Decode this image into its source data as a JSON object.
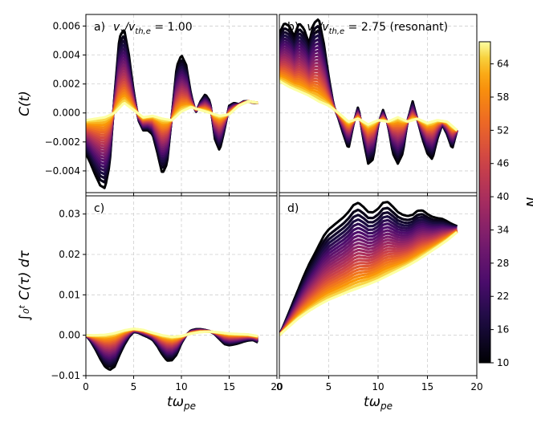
{
  "chart_data": {
    "type": "line",
    "colormap": "inferno",
    "colorbar": {
      "label": "N",
      "min": 10,
      "max": 68,
      "ticks": [
        "10",
        "16",
        "22",
        "28",
        "34",
        "40",
        "46",
        "52",
        "58",
        "64"
      ]
    },
    "x_axis": {
      "label": "tω_pe",
      "lim": [
        0,
        20
      ],
      "ticks": [
        "0",
        "5",
        "10",
        "15",
        "20"
      ]
    },
    "panels": [
      {
        "id": "a",
        "title": "a)  v_x/v_th,e = 1.00",
        "tag": "a)",
        "eq": "v_x/v_th,e = 1.00",
        "ylabel": "C(t)",
        "ylim": [
          -0.0055,
          0.0068
        ],
        "yticks": [
          "0.006",
          "0.004",
          "0.002",
          "0.000",
          "−0.002",
          "−0.004"
        ],
        "x_end": 18.0,
        "series_low_N": {
          "N": 10,
          "x": [
            0,
            0.5,
            1,
            1.5,
            2,
            2.5,
            3,
            3.5,
            4,
            4.5,
            5,
            5.5,
            6,
            6.5,
            7,
            7.5,
            8,
            8.5,
            9,
            9.5,
            10,
            10.5,
            11,
            11.5,
            12,
            12.5,
            13,
            13.5,
            14,
            14.5,
            15,
            15.5,
            16,
            16.5,
            17,
            17.5,
            18
          ],
          "y": [
            -0.0028,
            -0.0035,
            -0.0043,
            -0.005,
            -0.0052,
            -0.0035,
            0.0012,
            0.0052,
            0.0058,
            0.004,
            0.0015,
            -0.0005,
            -0.0012,
            -0.0012,
            -0.0015,
            -0.0028,
            -0.0042,
            -0.0035,
            -0.0002,
            0.0032,
            0.004,
            0.0033,
            0.0013,
            0,
            0.0008,
            0.0013,
            0.0008,
            -0.0018,
            -0.0026,
            -0.0012,
            0.0005,
            0.0007,
            0.0006,
            0.0008,
            0.0008,
            0.0007,
            0.0007
          ]
        },
        "series_high_N": {
          "N": 68,
          "x": [
            0,
            1,
            2,
            3,
            4,
            5,
            6,
            7,
            8,
            9,
            10,
            11,
            12,
            13,
            14,
            15,
            16,
            17,
            18
          ],
          "y": [
            -0.0005,
            -0.0004,
            -0.0003,
            0.0,
            0.0007,
            0.0002,
            -0.0003,
            -0.0002,
            -0.0004,
            -0.0005,
            0.0001,
            0.0004,
            0.0002,
            0.0,
            -0.0002,
            -0.0001,
            0.0005,
            0.0008,
            0.0007
          ]
        }
      },
      {
        "id": "b",
        "title": "b)  v_x/v_th,e = 2.75 (resonant)",
        "tag": "b)",
        "eq": "v_x/v_th,e = 2.75 (resonant)",
        "ylabel": "",
        "ylim": [
          -0.0055,
          0.0068
        ],
        "yticks": [],
        "x_end": 18.0,
        "series_low_N": {
          "N": 10,
          "x": [
            0,
            0.5,
            1,
            1.5,
            2,
            2.5,
            3,
            3.5,
            4,
            4.5,
            5,
            5.5,
            6,
            6.5,
            7,
            7.5,
            8,
            8.5,
            9,
            9.5,
            10,
            10.5,
            11,
            11.5,
            12,
            12.5,
            13,
            13.5,
            14,
            14.5,
            15,
            15.5,
            16,
            16.5,
            17,
            17.5,
            18
          ],
          "y": [
            0.0055,
            0.0062,
            0.006,
            0.0053,
            0.0062,
            0.0058,
            0.0048,
            0.0062,
            0.0065,
            0.0048,
            0.0025,
            0.0005,
            -0.0004,
            -0.0015,
            -0.0025,
            -0.0008,
            0.0005,
            -0.0018,
            -0.0035,
            -0.0032,
            -0.0008,
            0.0002,
            -0.0008,
            -0.0028,
            -0.0035,
            -0.0028,
            -0.0005,
            0.0008,
            -0.0005,
            -0.0018,
            -0.0028,
            -0.0032,
            -0.0018,
            -0.0008,
            -0.0015,
            -0.0025,
            -0.0012
          ]
        },
        "series_high_N": {
          "N": 68,
          "x": [
            0,
            1,
            2,
            3,
            4,
            5,
            6,
            7,
            8,
            9,
            10,
            11,
            12,
            13,
            14,
            15,
            16,
            17,
            18
          ],
          "y": [
            0.0022,
            0.0018,
            0.0015,
            0.0012,
            0.0008,
            0.0005,
            0.0,
            -0.0006,
            -0.0004,
            -0.0008,
            -0.0005,
            -0.0006,
            -0.0003,
            -0.0006,
            -0.0004,
            -0.0007,
            -0.0005,
            -0.0006,
            -0.0012
          ]
        }
      },
      {
        "id": "c",
        "title": "c)",
        "tag": "c)",
        "eq": "",
        "ylabel": "∫₀ᵗ C(τ) dτ",
        "ylim": [
          -0.01,
          0.0345
        ],
        "yticks": [
          "0.03",
          "0.02",
          "0.01",
          "0.00",
          "−0.01"
        ],
        "x_end": 18.0,
        "series_low_N": {
          "N": 10,
          "x": [
            0,
            0.5,
            1,
            1.5,
            2,
            2.5,
            3,
            3.5,
            4,
            4.5,
            5,
            5.5,
            6,
            6.5,
            7,
            7.5,
            8,
            8.5,
            9,
            9.5,
            10,
            10.5,
            11,
            11.5,
            12,
            12.5,
            13,
            13.5,
            14,
            14.5,
            15,
            15.5,
            16,
            16.5,
            17,
            17.5,
            18
          ],
          "y": [
            0,
            -0.0015,
            -0.0035,
            -0.0058,
            -0.0078,
            -0.0086,
            -0.0078,
            -0.005,
            -0.0025,
            -0.0005,
            0.0008,
            0.0006,
            0,
            -0.0005,
            -0.0012,
            -0.0028,
            -0.0048,
            -0.0063,
            -0.0062,
            -0.0048,
            -0.002,
            0.0,
            0.0012,
            0.0015,
            0.0015,
            0.0013,
            0.001,
            0.0002,
            -0.001,
            -0.0022,
            -0.0025,
            -0.0023,
            -0.002,
            -0.0016,
            -0.0013,
            -0.0012,
            -0.0018
          ]
        },
        "series_high_N": {
          "N": 68,
          "x": [
            0,
            1,
            2,
            3,
            4,
            5,
            6,
            7,
            8,
            9,
            10,
            11,
            12,
            13,
            14,
            15,
            16,
            17,
            18
          ],
          "y": [
            0,
            0,
            0.0001,
            0.0005,
            0.0012,
            0.0016,
            0.0013,
            0.0006,
            0,
            -0.0004,
            -0.0002,
            0.0004,
            0.0008,
            0.0009,
            0.0007,
            0.0004,
            0.0003,
            0.0002,
            -0.0002
          ]
        }
      },
      {
        "id": "d",
        "title": "d)",
        "tag": "d)",
        "eq": "",
        "ylabel": "",
        "ylim": [
          -0.01,
          0.0345
        ],
        "yticks": [],
        "x_end": 18.0,
        "series_low_N": {
          "N": 10,
          "x": [
            0,
            0.5,
            1,
            1.5,
            2,
            2.5,
            3,
            3.5,
            4,
            4.5,
            5,
            5.5,
            6,
            6.5,
            7,
            7.5,
            8,
            8.5,
            9,
            9.5,
            10,
            10.5,
            11,
            11.5,
            12,
            12.5,
            13,
            13.5,
            14,
            14.5,
            15,
            15.5,
            16,
            16.5,
            17,
            17.5,
            18
          ],
          "y": [
            0,
            0.0028,
            0.0058,
            0.0088,
            0.0118,
            0.0148,
            0.0175,
            0.0198,
            0.0222,
            0.0246,
            0.0262,
            0.0272,
            0.0282,
            0.0292,
            0.0305,
            0.0322,
            0.0328,
            0.0318,
            0.0305,
            0.0304,
            0.0313,
            0.0328,
            0.033,
            0.0318,
            0.0305,
            0.0298,
            0.0295,
            0.0298,
            0.0308,
            0.0309,
            0.03,
            0.0293,
            0.029,
            0.0288,
            0.0282,
            0.0275,
            0.027
          ]
        },
        "series_high_N": {
          "N": 68,
          "x": [
            0,
            1,
            2,
            3,
            4,
            5,
            6,
            7,
            8,
            9,
            10,
            11,
            12,
            13,
            14,
            15,
            16,
            17,
            18
          ],
          "y": [
            0,
            0.0022,
            0.0043,
            0.006,
            0.0075,
            0.0088,
            0.0098,
            0.0108,
            0.0117,
            0.0126,
            0.0136,
            0.0148,
            0.016,
            0.0172,
            0.0186,
            0.0202,
            0.0218,
            0.0235,
            0.0255
          ]
        }
      }
    ]
  }
}
